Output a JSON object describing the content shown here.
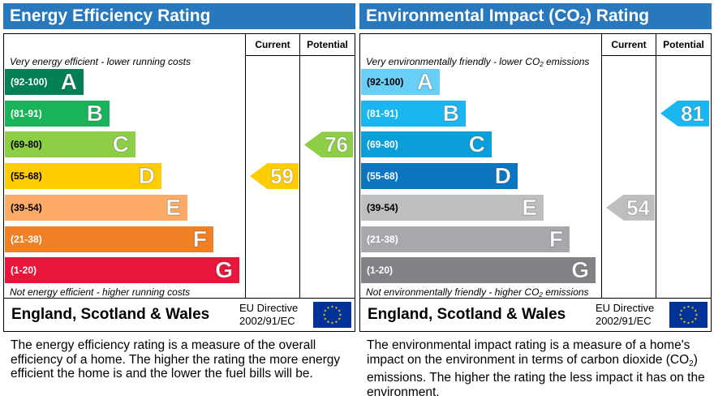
{
  "energy": {
    "title": "Energy Efficiency Rating",
    "col_current": "Current",
    "col_potential": "Potential",
    "top_caption": "Very energy efficient - lower running costs",
    "bottom_caption": "Not energy efficient - higher running costs",
    "bands": [
      {
        "range": "(92-100)",
        "letter": "A",
        "color": "#008054"
      },
      {
        "range": "(81-91)",
        "letter": "B",
        "color": "#19b459"
      },
      {
        "range": "(69-80)",
        "letter": "C",
        "color": "#8dce46"
      },
      {
        "range": "(55-68)",
        "letter": "D",
        "color": "#ffcc00"
      },
      {
        "range": "(39-54)",
        "letter": "E",
        "color": "#fcaa65"
      },
      {
        "range": "(21-38)",
        "letter": "F",
        "color": "#ef8023"
      },
      {
        "range": "(1-20)",
        "letter": "G",
        "color": "#e9153b"
      }
    ],
    "current": {
      "value": "59",
      "band": "D",
      "color": "#ffcc00"
    },
    "potential": {
      "value": "76",
      "band": "C",
      "color": "#8dce46"
    },
    "region": "England, Scotland & Wales",
    "directive_line1": "EU Directive",
    "directive_line2": "2002/91/EC",
    "description": "The energy efficiency rating is a measure of the overall efficiency of a home. The higher the rating the more energy efficient the home is and the lower the fuel bills will be."
  },
  "environment": {
    "title_prefix": "Environmental Impact (CO",
    "title_sub": "2",
    "title_suffix": ") Rating",
    "col_current": "Current",
    "col_potential": "Potential",
    "top_caption_prefix": "Very environmentally friendly - lower CO",
    "top_caption_sub": "2",
    "top_caption_suffix": " emissions",
    "bottom_caption_prefix": "Not environmentally friendly - higher CO",
    "bottom_caption_sub": "2",
    "bottom_caption_suffix": " emissions",
    "bands": [
      {
        "range": "(92-100)",
        "letter": "A",
        "color": "#6acff6"
      },
      {
        "range": "(81-91)",
        "letter": "B",
        "color": "#1ab6ef"
      },
      {
        "range": "(69-80)",
        "letter": "C",
        "color": "#0a9fd9"
      },
      {
        "range": "(55-68)",
        "letter": "D",
        "color": "#0b75bf"
      },
      {
        "range": "(39-54)",
        "letter": "E",
        "color": "#bcbec0"
      },
      {
        "range": "(21-38)",
        "letter": "F",
        "color": "#a6a8ab"
      },
      {
        "range": "(1-20)",
        "letter": "G",
        "color": "#808285"
      }
    ],
    "current": {
      "value": "54",
      "band": "E",
      "color": "#bcbec0"
    },
    "potential": {
      "value": "81",
      "band": "B",
      "color": "#1ab6ef"
    },
    "region": "England, Scotland & Wales",
    "directive_line1": "EU Directive",
    "directive_line2": "2002/91/EC",
    "description_prefix": "The environmental impact rating is a measure of a home's impact on the environment in terms of carbon dioxide (CO",
    "description_sub": "2",
    "description_suffix": ") emissions. The higher the rating the less impact it has on the environment."
  }
}
